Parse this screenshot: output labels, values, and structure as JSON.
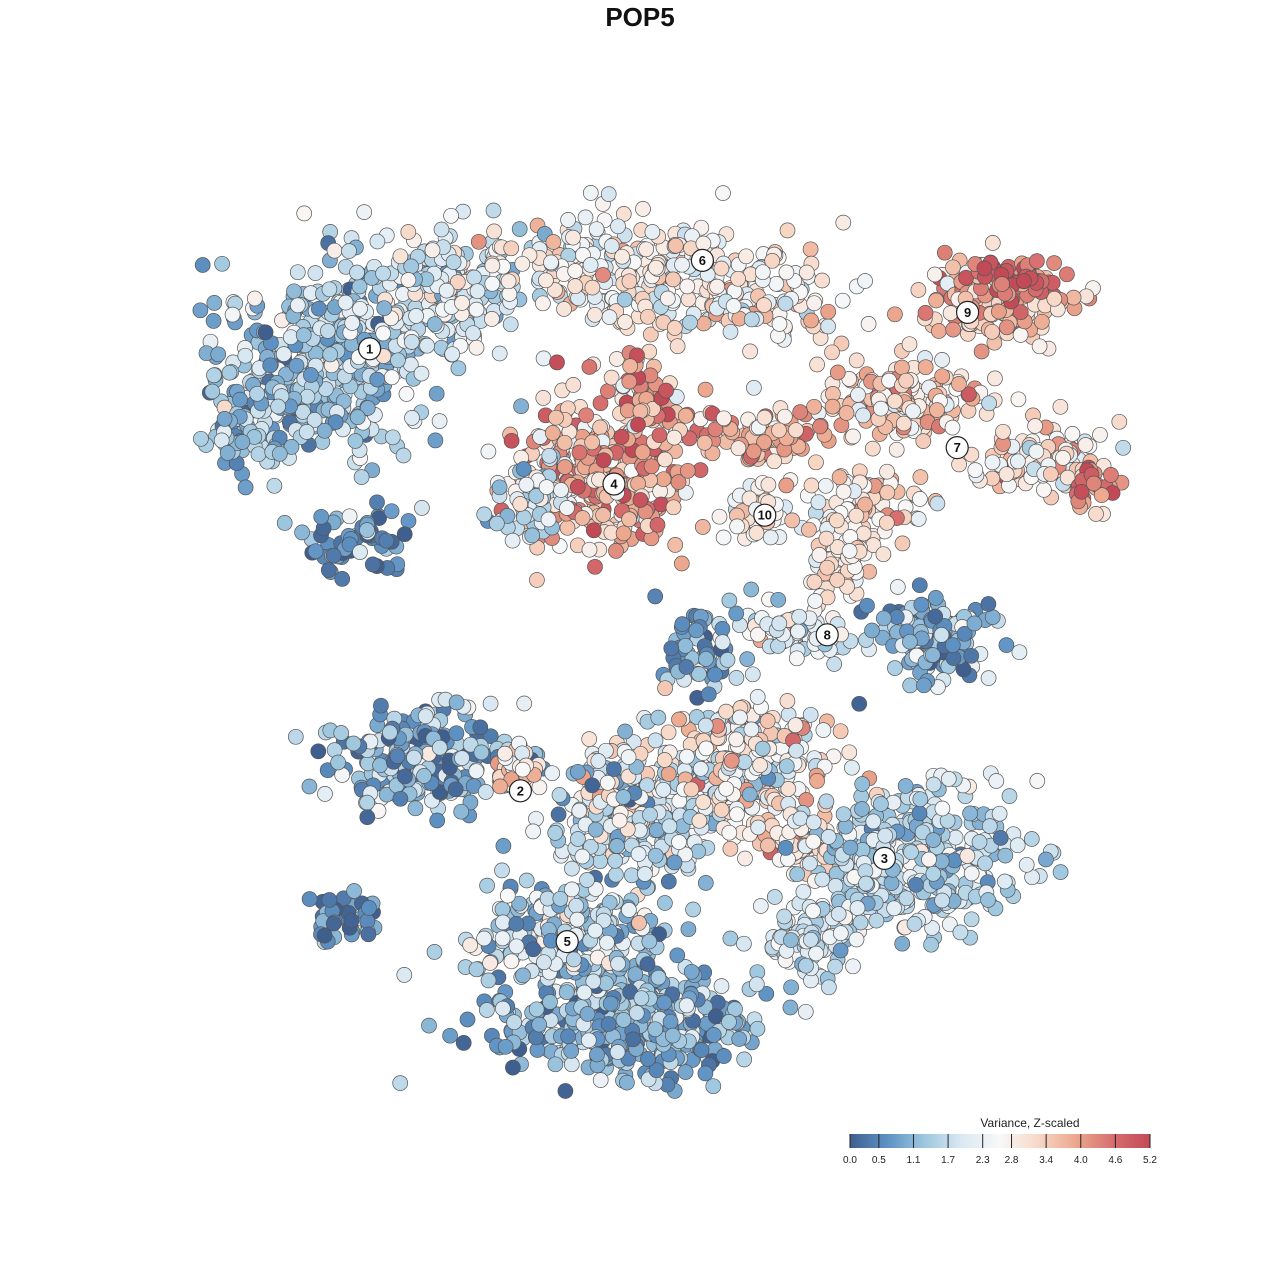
{
  "chart_data": {
    "type": "scatter",
    "title": "POP5",
    "legend": {
      "title": "Variance, Z-scaled",
      "placement": "bottom-right",
      "ticks": [
        "0.0",
        "0.5",
        "1.1",
        "1.7",
        "2.3",
        "2.8",
        "3.4",
        "4.0",
        "4.6",
        "5.2"
      ],
      "min": 0.0,
      "max": 5.2
    },
    "color_scale": [
      "#3f5f8f",
      "#5e92c4",
      "#9ec7df",
      "#dbe9f3",
      "#f8f8f8",
      "#f8d8c7",
      "#eca88e",
      "#d76f6e",
      "#c24a57"
    ],
    "clusters": [
      {
        "label": "1",
        "x": -5.2,
        "y": 5.6,
        "mean": 1.4
      },
      {
        "label": "2",
        "x": -2.3,
        "y": -2.9,
        "mean": 1.0
      },
      {
        "label": "3",
        "x": 4.7,
        "y": -4.2,
        "mean": 1.7
      },
      {
        "label": "4",
        "x": -0.5,
        "y": 3.0,
        "mean": 3.9
      },
      {
        "label": "5",
        "x": -1.4,
        "y": -5.8,
        "mean": 1.3
      },
      {
        "label": "6",
        "x": 1.2,
        "y": 7.3,
        "mean": 2.7
      },
      {
        "label": "7",
        "x": 6.1,
        "y": 3.7,
        "mean": 3.2
      },
      {
        "label": "8",
        "x": 3.6,
        "y": 0.1,
        "mean": 2.0
      },
      {
        "label": "9",
        "x": 6.3,
        "y": 6.3,
        "mean": 4.6
      },
      {
        "label": "10",
        "x": 2.4,
        "y": 2.4,
        "mean": 2.6
      }
    ]
  }
}
